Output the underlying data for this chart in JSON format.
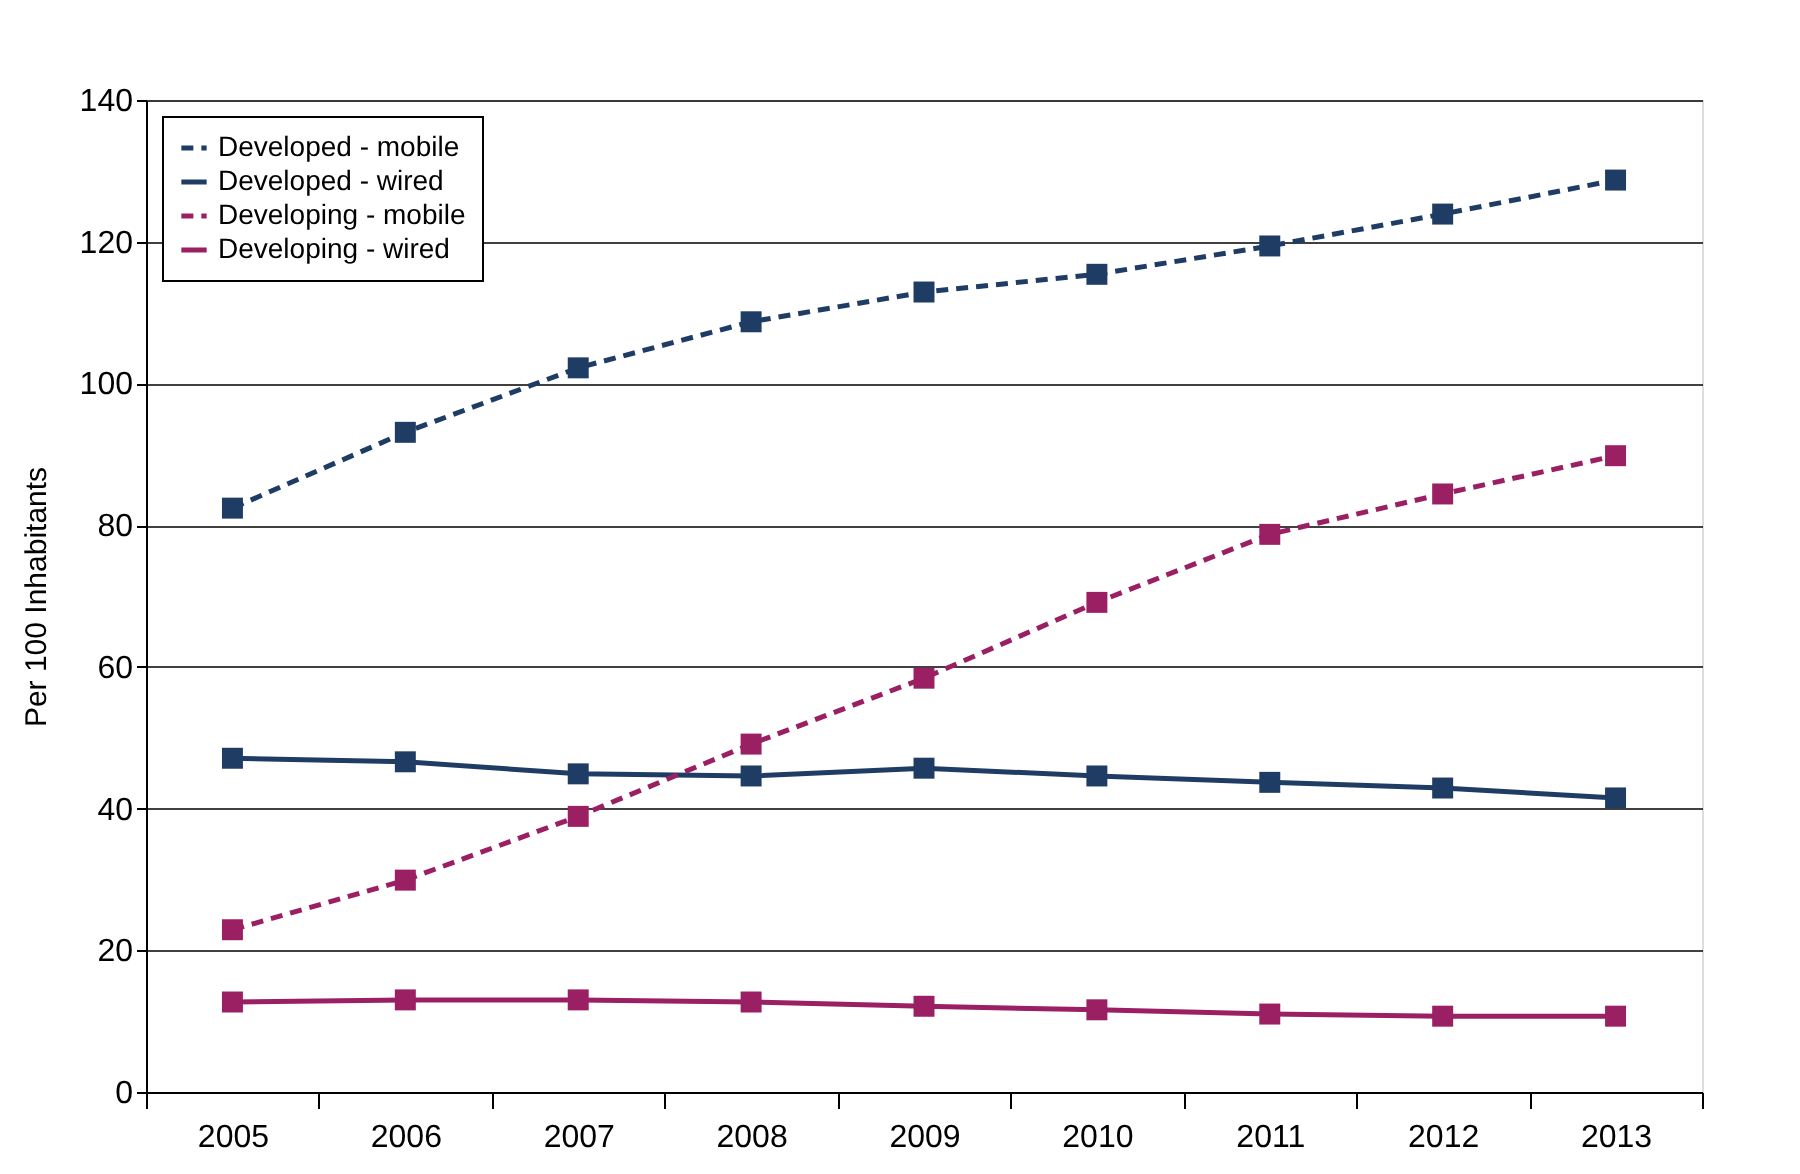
{
  "chart_data": {
    "type": "line",
    "ylabel": "Per 100 Inhabitants",
    "categories": [
      "2005",
      "2006",
      "2007",
      "2008",
      "2009",
      "2010",
      "2011",
      "2012",
      "2013"
    ],
    "series": [
      {
        "name": "Developed - mobile",
        "color": "#1f3d64",
        "line_style": "dashed",
        "values": [
          82.4,
          93.1,
          102.2,
          108.7,
          112.9,
          115.4,
          119.4,
          123.9,
          128.7
        ]
      },
      {
        "name": "Developed - wired",
        "color": "#1f3d64",
        "line_style": "solid",
        "values": [
          47.1,
          46.6,
          44.9,
          44.6,
          45.7,
          44.6,
          43.7,
          42.9,
          41.5
        ]
      },
      {
        "name": "Developing - mobile",
        "color": "#9b1f63",
        "line_style": "dashed",
        "values": [
          22.9,
          29.9,
          38.9,
          49.1,
          58.4,
          69.1,
          78.7,
          84.4,
          89.8
        ]
      },
      {
        "name": "Developing - wired",
        "color": "#9b1f63",
        "line_style": "solid",
        "values": [
          12.7,
          13.0,
          13.0,
          12.7,
          12.1,
          11.6,
          11.0,
          10.7,
          10.7
        ]
      }
    ],
    "ylim": [
      0,
      140
    ],
    "yticks": [
      0,
      20,
      40,
      60,
      80,
      100,
      120,
      140
    ],
    "grid": "y",
    "legend": "top left",
    "marker": "square"
  }
}
